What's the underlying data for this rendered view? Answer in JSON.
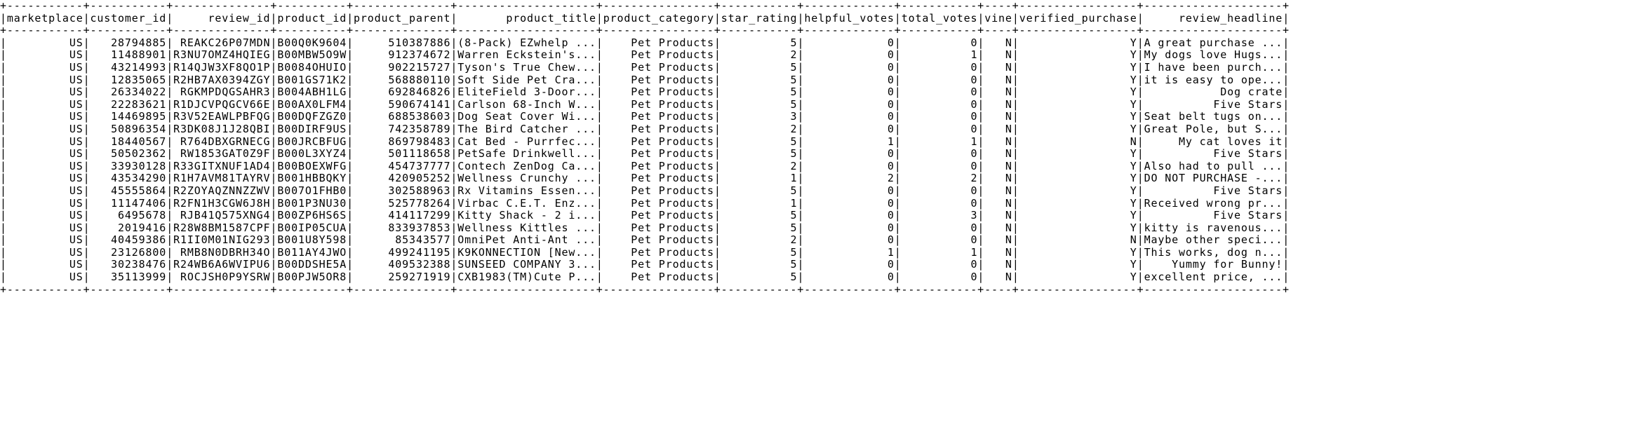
{
  "table": {
    "columns": [
      {
        "name": "marketplace",
        "align": "right"
      },
      {
        "name": "customer_id",
        "align": "right"
      },
      {
        "name": "review_id",
        "align": "right"
      },
      {
        "name": "product_id",
        "align": "right"
      },
      {
        "name": "product_parent",
        "align": "right"
      },
      {
        "name": "product_title",
        "align": "right"
      },
      {
        "name": "product_category",
        "align": "right"
      },
      {
        "name": "star_rating",
        "align": "right"
      },
      {
        "name": "helpful_votes",
        "align": "right"
      },
      {
        "name": "total_votes",
        "align": "right"
      },
      {
        "name": "vine",
        "align": "right"
      },
      {
        "name": "verified_purchase",
        "align": "right"
      },
      {
        "name": "review_headline",
        "align": "right"
      }
    ],
    "rows": [
      [
        "US",
        "28794885",
        "REAKC26P07MDN",
        "B00Q0K9604",
        "510387886",
        "(8-Pack) EZwhelp ...",
        "Pet Products",
        "5",
        "0",
        "0",
        "N",
        "Y",
        "A great purchase ..."
      ],
      [
        "US",
        "11488901",
        "R3NU7OMZ4HQIEG",
        "B00MBW5O9W",
        "912374672",
        "Warren Eckstein's...",
        "Pet Products",
        "2",
        "0",
        "1",
        "N",
        "Y",
        "My dogs love Hugs..."
      ],
      [
        "US",
        "43214993",
        "R14QJW3XF8QO1P",
        "B0084OHUIO",
        "902215727",
        "Tyson's True Chew...",
        "Pet Products",
        "5",
        "0",
        "0",
        "N",
        "Y",
        "I have been purch..."
      ],
      [
        "US",
        "12835065",
        "R2HB7AX0394ZGY",
        "B001GS71K2",
        "568880110",
        "Soft Side Pet Cra...",
        "Pet Products",
        "5",
        "0",
        "0",
        "N",
        "Y",
        "it is easy to ope..."
      ],
      [
        "US",
        "26334022",
        "RGKMPDQGSAHR3",
        "B004ABH1LG",
        "692846826",
        "EliteField 3-Door...",
        "Pet Products",
        "5",
        "0",
        "0",
        "N",
        "Y",
        "Dog crate"
      ],
      [
        "US",
        "22283621",
        "R1DJCVPQGCV66E",
        "B00AX0LFM4",
        "590674141",
        "Carlson 68-Inch W...",
        "Pet Products",
        "5",
        "0",
        "0",
        "N",
        "Y",
        "Five Stars"
      ],
      [
        "US",
        "14469895",
        "R3V52EAWLPBFQG",
        "B00DQFZGZ0",
        "688538603",
        "Dog Seat Cover Wi...",
        "Pet Products",
        "3",
        "0",
        "0",
        "N",
        "Y",
        "Seat belt tugs on..."
      ],
      [
        "US",
        "50896354",
        "R3DK08J1J28QBI",
        "B00DIRF9US",
        "742358789",
        "The Bird Catcher ...",
        "Pet Products",
        "2",
        "0",
        "0",
        "N",
        "Y",
        "Great Pole, but S..."
      ],
      [
        "US",
        "18440567",
        "R764DBXGRNECG",
        "B00JRCBFUG",
        "869798483",
        "Cat Bed - Purrfec...",
        "Pet Products",
        "5",
        "1",
        "1",
        "N",
        "N",
        "My cat loves it"
      ],
      [
        "US",
        "50502362",
        "RW1853GAT0Z9F",
        "B000L3XYZ4",
        "501118658",
        "PetSafe Drinkwell...",
        "Pet Products",
        "5",
        "0",
        "0",
        "N",
        "Y",
        "Five Stars"
      ],
      [
        "US",
        "33930128",
        "R33GITXNUF1AD4",
        "B00BOEXWFG",
        "454737777",
        "Contech ZenDog Ca...",
        "Pet Products",
        "2",
        "0",
        "0",
        "N",
        "Y",
        "Also had to pull ..."
      ],
      [
        "US",
        "43534290",
        "R1H7AVM81TAYRV",
        "B001HBBQKY",
        "420905252",
        "Wellness Crunchy ...",
        "Pet Products",
        "1",
        "2",
        "2",
        "N",
        "Y",
        "DO NOT PURCHASE -..."
      ],
      [
        "US",
        "45555864",
        "R2ZOYAQZNNZZWV",
        "B007O1FHB0",
        "302588963",
        "Rx Vitamins Essen...",
        "Pet Products",
        "5",
        "0",
        "0",
        "N",
        "Y",
        "Five Stars"
      ],
      [
        "US",
        "11147406",
        "R2FN1H3CGW6J8H",
        "B001P3NU30",
        "525778264",
        "Virbac C.E.T. Enz...",
        "Pet Products",
        "1",
        "0",
        "0",
        "N",
        "Y",
        "Received wrong pr..."
      ],
      [
        "US",
        "6495678",
        "RJB41Q575XNG4",
        "B00ZP6HS6S",
        "414117299",
        "Kitty Shack - 2 i...",
        "Pet Products",
        "5",
        "0",
        "3",
        "N",
        "Y",
        "Five Stars"
      ],
      [
        "US",
        "2019416",
        "R28W8BM1587CPF",
        "B00IP05CUA",
        "833937853",
        "Wellness Kittles ...",
        "Pet Products",
        "5",
        "0",
        "0",
        "N",
        "Y",
        "kitty is ravenous..."
      ],
      [
        "US",
        "40459386",
        "R1II0M01NIG293",
        "B001U8Y598",
        "85343577",
        "OmniPet Anti-Ant ...",
        "Pet Products",
        "2",
        "0",
        "0",
        "N",
        "N",
        "Maybe other speci..."
      ],
      [
        "US",
        "23126800",
        "RMB8N0DBRH34O",
        "B011AY4JWO",
        "499241195",
        "K9KONNECTION [New...",
        "Pet Products",
        "5",
        "1",
        "1",
        "N",
        "Y",
        "This works, dog n..."
      ],
      [
        "US",
        "30238476",
        "R24WB6A6WVIPU6",
        "B00DDSHE5A",
        "409532388",
        "SUNSEED COMPANY 3...",
        "Pet Products",
        "5",
        "0",
        "0",
        "N",
        "Y",
        "Yummy for Bunny!"
      ],
      [
        "US",
        "35113999",
        "ROCJSH0P9YSRW",
        "B00PJW5OR8",
        "259271919",
        "CXB1983(TM)Cute P...",
        "Pet Products",
        "5",
        "0",
        "0",
        "N",
        "Y",
        "excellent price, ..."
      ]
    ]
  }
}
